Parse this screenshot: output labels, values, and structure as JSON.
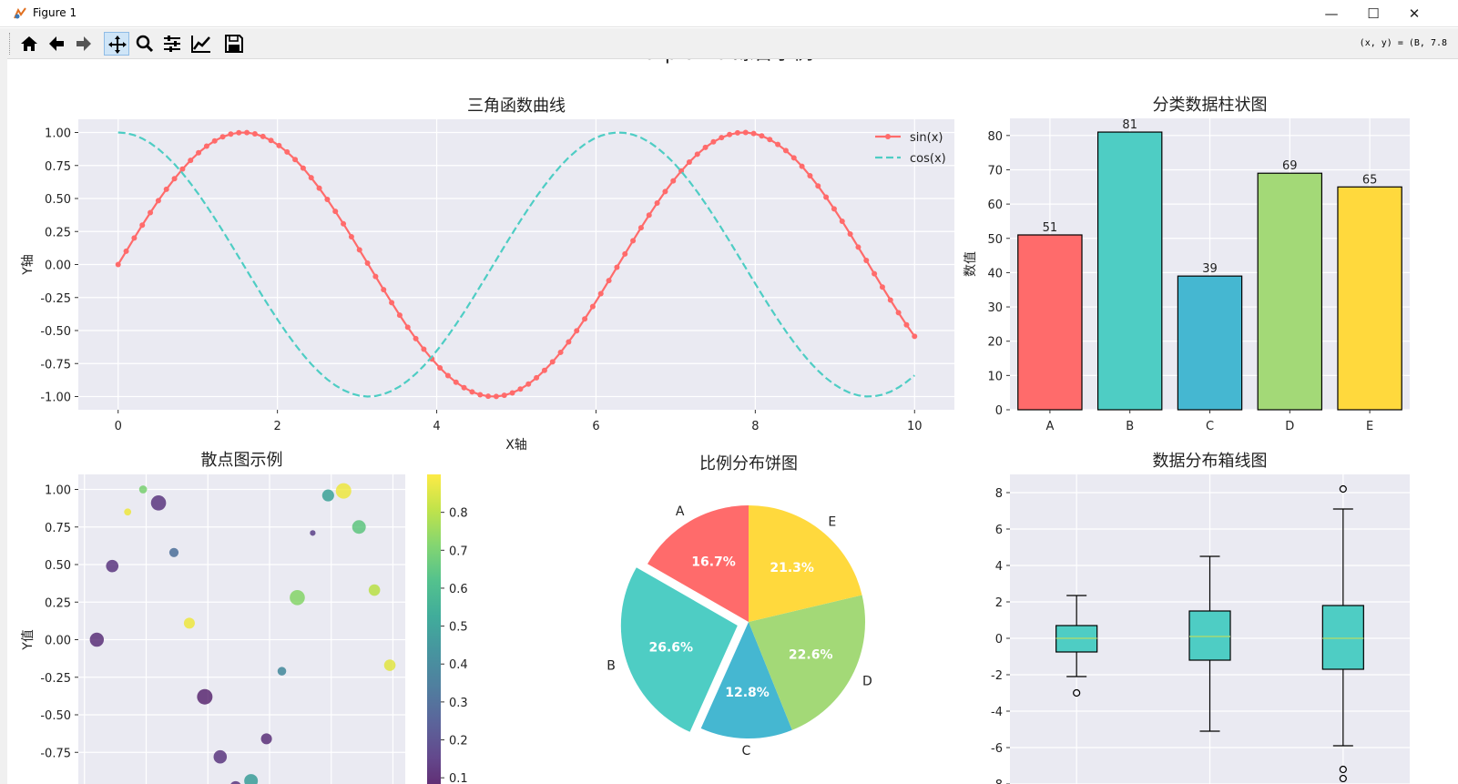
{
  "window": {
    "title": "Figure 1",
    "minimize_glyph": "—",
    "maximize_glyph": "☐",
    "close_glyph": "✕"
  },
  "toolbar": {
    "buttons": [
      "home-icon",
      "back-arrow-icon",
      "forward-arrow-icon",
      "pan-icon",
      "zoom-icon",
      "configure-subplots-icon",
      "edit-axis-icon",
      "save-icon"
    ],
    "active": "pan-icon",
    "coord_readout": "(x, y) = (B, 7.8"
  },
  "figure": {
    "suptitle": "Matplotlib 综合示例"
  },
  "colors": {
    "red": "#FF6B6B",
    "teal": "#4ECDC4",
    "blue": "#45B7D1",
    "green": "#A3D977",
    "yellow": "#FFD93D",
    "axes_bg": "#EAEAF2"
  },
  "chart_data": [
    {
      "type": "line",
      "title": "三角函数曲线",
      "xlabel": "X轴",
      "ylabel": "Y轴",
      "xlim": [
        -0.5,
        10.5
      ],
      "ylim": [
        -1.1,
        1.1
      ],
      "xticks": [
        "0",
        "2",
        "4",
        "6",
        "8",
        "10"
      ],
      "yticks": [
        "1.00",
        "0.75",
        "0.50",
        "0.25",
        "0.00",
        "-0.25",
        "-0.50",
        "-0.75",
        "-1.00"
      ],
      "x_range": [
        0,
        10
      ],
      "num_points": 100,
      "grid": true,
      "legend_loc": "upper right",
      "series": [
        {
          "name": "sin(x)",
          "function": "sin",
          "style": "solid with circle markers",
          "color": "#FF6B6B"
        },
        {
          "name": "cos(x)",
          "function": "cos",
          "style": "dashed",
          "color": "#4ECDC4"
        }
      ]
    },
    {
      "type": "bar",
      "title": "分类数据柱状图",
      "ylabel": "数值",
      "categories": [
        "A",
        "B",
        "C",
        "D",
        "E"
      ],
      "values": [
        51,
        81,
        39,
        69,
        65
      ],
      "value_labels": [
        "51",
        "81",
        "39",
        "69",
        "65"
      ],
      "colors": [
        "#FF6B6B",
        "#4ECDC4",
        "#45B7D1",
        "#A3D977",
        "#FFD93D"
      ],
      "ylim": [
        0,
        85
      ],
      "yticks": [
        "0",
        "10",
        "20",
        "30",
        "40",
        "50",
        "60",
        "70",
        "80"
      ],
      "grid": true
    },
    {
      "type": "scatter",
      "title": "散点图示例",
      "ylabel": "Y值",
      "yticks": [
        "1.00",
        "0.75",
        "0.50",
        "0.25",
        "0.00",
        "-0.25",
        "-0.50",
        "-0.75",
        "-1.00"
      ],
      "ylim": [
        -1.1,
        1.1
      ],
      "xlim": [
        0,
        1
      ],
      "colorbar_ticks": [
        "0.8",
        "0.7",
        "0.6",
        "0.5",
        "0.4",
        "0.3",
        "0.2",
        "0.1"
      ],
      "colorbar_range": [
        0.05,
        0.9
      ],
      "points": [
        {
          "x": 0.04,
          "y": 0.0,
          "c": 0.1,
          "s": 80
        },
        {
          "x": 0.09,
          "y": 0.49,
          "c": 0.12,
          "s": 60
        },
        {
          "x": 0.14,
          "y": 0.85,
          "c": 0.88,
          "s": 15
        },
        {
          "x": 0.19,
          "y": 1.0,
          "c": 0.7,
          "s": 20
        },
        {
          "x": 0.24,
          "y": 0.91,
          "c": 0.12,
          "s": 95
        },
        {
          "x": 0.29,
          "y": 0.58,
          "c": 0.3,
          "s": 30
        },
        {
          "x": 0.34,
          "y": 0.11,
          "c": 0.88,
          "s": 45
        },
        {
          "x": 0.39,
          "y": -0.38,
          "c": 0.08,
          "s": 100
        },
        {
          "x": 0.44,
          "y": -0.78,
          "c": 0.12,
          "s": 70
        },
        {
          "x": 0.49,
          "y": -0.98,
          "c": 0.12,
          "s": 50
        },
        {
          "x": 0.54,
          "y": -0.94,
          "c": 0.48,
          "s": 75
        },
        {
          "x": 0.59,
          "y": -0.66,
          "c": 0.1,
          "s": 45
        },
        {
          "x": 0.64,
          "y": -0.21,
          "c": 0.4,
          "s": 25
        },
        {
          "x": 0.69,
          "y": 0.28,
          "c": 0.72,
          "s": 95
        },
        {
          "x": 0.74,
          "y": 0.71,
          "c": 0.15,
          "s": 8
        },
        {
          "x": 0.79,
          "y": 0.96,
          "c": 0.5,
          "s": 55
        },
        {
          "x": 0.84,
          "y": 0.99,
          "c": 0.88,
          "s": 100
        },
        {
          "x": 0.89,
          "y": 0.75,
          "c": 0.65,
          "s": 75
        },
        {
          "x": 0.94,
          "y": 0.33,
          "c": 0.8,
          "s": 50
        },
        {
          "x": 0.99,
          "y": -0.17,
          "c": 0.86,
          "s": 50
        }
      ]
    },
    {
      "type": "pie",
      "title": "比例分布饼图",
      "labels": [
        "A",
        "B",
        "C",
        "D",
        "E"
      ],
      "values": [
        16.7,
        26.6,
        12.8,
        22.6,
        21.3
      ],
      "pct_labels": [
        "16.7%",
        "26.6%",
        "12.8%",
        "22.6%",
        "21.3%"
      ],
      "colors": [
        "#FF6B6B",
        "#4ECDC4",
        "#45B7D1",
        "#A3D977",
        "#FFD93D"
      ],
      "explode": [
        0,
        0.1,
        0,
        0,
        0
      ],
      "startangle": 90,
      "direction": "counterclockwise"
    },
    {
      "type": "box",
      "title": "数据分布箱线图",
      "yticks": [
        "8",
        "6",
        "4",
        "2",
        "0",
        "-2",
        "-4",
        "-6",
        "-8"
      ],
      "ylim": [
        -8.2,
        9.0
      ],
      "boxes": [
        {
          "whislo": -2.1,
          "q1": -0.75,
          "med": 0.0,
          "q3": 0.7,
          "whishi": 2.35,
          "fliers": [
            -3.0
          ]
        },
        {
          "whislo": -5.1,
          "q1": -1.2,
          "med": 0.1,
          "q3": 1.5,
          "whishi": 4.5,
          "fliers": []
        },
        {
          "whislo": -5.9,
          "q1": -1.7,
          "med": 0.0,
          "q3": 1.8,
          "whishi": 7.1,
          "fliers": [
            8.2,
            -7.2,
            -7.7
          ]
        }
      ],
      "box_color": "#4ECDC4",
      "median_color": "#A3D977"
    }
  ]
}
